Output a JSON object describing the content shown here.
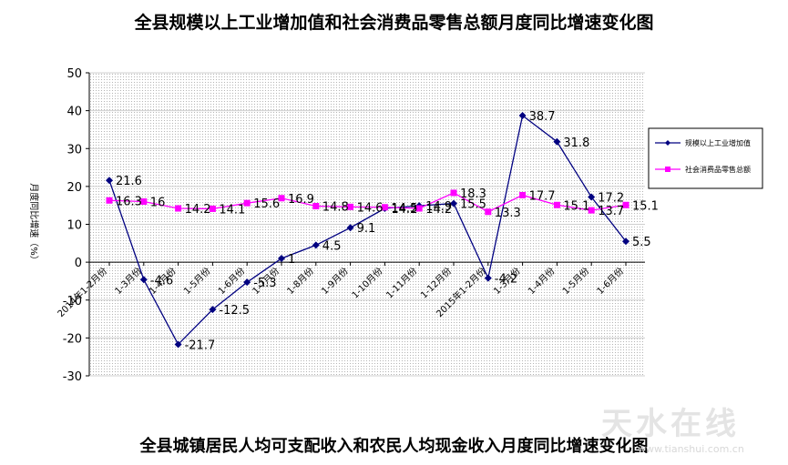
{
  "title": "全县规模以上工业增加值和社会消费品零售总额月度同比增速变化图",
  "bottom_title": "全县城镇居民人均可支配收入和农民人均现金收入月度同比增速变化图",
  "watermark": "天水在线",
  "watermark_url": "www.tianshui.com.cn",
  "colors": {
    "industry": "#000080",
    "retail": "#ff00ff",
    "grid": "#c8c8c8",
    "plot_bg": "#f4f4f4"
  },
  "chart_data": {
    "type": "line",
    "title": "",
    "xlabel": "",
    "ylabel": "月度同比增速（%）",
    "ylim": [
      -30,
      50
    ],
    "yticks": [
      -30,
      -20,
      -10,
      0,
      10,
      20,
      30,
      40,
      50
    ],
    "grid": true,
    "legend_position": "right",
    "categories": [
      "2014年1-2月份",
      "1-3月份",
      "1-4月份",
      "1-5月份",
      "1-6月份",
      "1-7月份",
      "1-8月份",
      "1-9月份",
      "1-10月份",
      "1-11月份",
      "1-12月份",
      "2015年1-2月份",
      "1-3月份",
      "1-4月份",
      "1-5月份",
      "1-6月份"
    ],
    "series": [
      {
        "name": "规模以上工业增加值",
        "marker": "diamond",
        "values": [
          21.6,
          -4.6,
          -21.7,
          -12.5,
          -5.3,
          1,
          4.5,
          9.1,
          14.2,
          14.9,
          15.5,
          -4.2,
          38.7,
          31.8,
          17.2,
          5.5
        ],
        "labels": [
          "21.6",
          "-4.6",
          "-21.7",
          "-12.5",
          "-5.3",
          "1",
          "4.5",
          "9.1",
          "14.2",
          "14.9",
          "15.5",
          "-4.2",
          "38.7",
          "31.8",
          "17.2",
          "5.5"
        ]
      },
      {
        "name": "社会消费品零售总额",
        "marker": "square",
        "values": [
          16.3,
          16,
          14.2,
          14.1,
          15.6,
          16.9,
          14.8,
          14.6,
          14.5,
          14.2,
          18.3,
          13.3,
          17.7,
          15.1,
          13.7,
          15.1
        ],
        "labels": [
          "16.3",
          "16",
          "14.2",
          "14.1",
          "15.6",
          "16.9",
          "14.8",
          "14.6",
          "14.5",
          "14.2",
          "18.3",
          "13.3",
          "17.7",
          "15.1",
          "13.7",
          "15.1"
        ]
      }
    ]
  }
}
